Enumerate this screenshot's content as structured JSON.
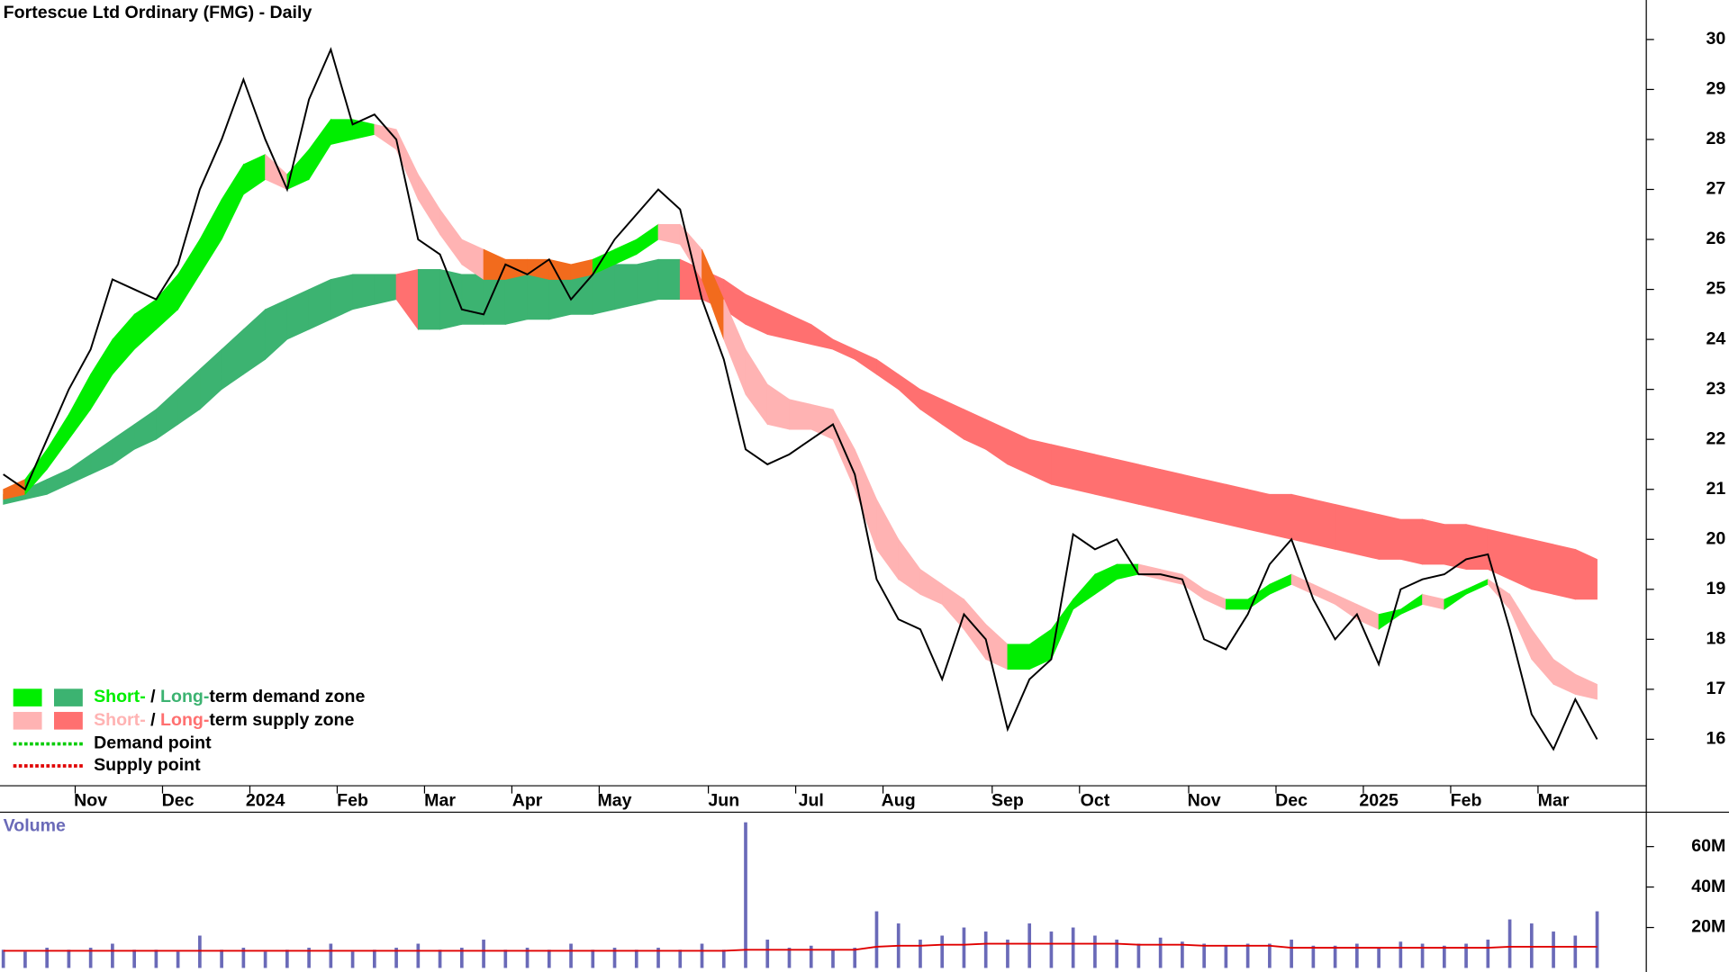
{
  "chart_data": {
    "type": "line",
    "title": "Fortescue Ltd Ordinary (FMG) - Daily",
    "categories": [
      null,
      null,
      null,
      null,
      "Nov",
      null,
      null,
      null,
      "Dec",
      null,
      null,
      null,
      "2024",
      null,
      null,
      null,
      "Feb",
      null,
      null,
      null,
      "Mar",
      null,
      null,
      null,
      "Apr",
      null,
      null,
      null,
      "May",
      null,
      null,
      null,
      null,
      "Jun",
      null,
      null,
      null,
      "Jul",
      null,
      null,
      null,
      "Aug",
      null,
      null,
      null,
      null,
      "Sep",
      null,
      null,
      null,
      "Oct",
      null,
      null,
      null,
      null,
      "Nov",
      null,
      null,
      null,
      "Dec",
      null,
      null,
      null,
      "2025",
      null,
      null,
      null,
      "Feb",
      null,
      null,
      null,
      "Mar",
      null,
      null
    ],
    "values": [
      21.3,
      21.0,
      22.0,
      23.0,
      23.8,
      25.2,
      25.0,
      24.8,
      25.5,
      27.0,
      28.0,
      29.2,
      28.0,
      27.0,
      28.8,
      29.8,
      28.3,
      28.5,
      28.0,
      26.0,
      25.7,
      24.6,
      24.5,
      25.5,
      25.3,
      25.6,
      24.8,
      25.3,
      26.0,
      26.5,
      27.0,
      26.6,
      24.8,
      23.6,
      21.8,
      21.5,
      21.7,
      22.0,
      22.3,
      21.3,
      19.2,
      18.4,
      18.2,
      17.2,
      18.5,
      18.0,
      16.2,
      17.2,
      17.6,
      20.1,
      19.8,
      20.0,
      19.3,
      19.3,
      19.2,
      18.0,
      17.8,
      18.5,
      19.5,
      20.0,
      18.8,
      18.0,
      18.5,
      17.5,
      19.0,
      19.2,
      19.3,
      19.6,
      19.7,
      18.2,
      16.5,
      15.8,
      16.8,
      16.0
    ],
    "color": "#000000",
    "short_band": {
      "upper": [
        21.0,
        21.2,
        21.8,
        22.5,
        23.3,
        24.0,
        24.5,
        24.8,
        25.3,
        26.0,
        26.8,
        27.5,
        27.7,
        27.3,
        27.8,
        28.4,
        28.4,
        28.3,
        28.2,
        27.3,
        26.6,
        26.0,
        25.8,
        25.6,
        25.6,
        25.6,
        25.5,
        25.6,
        25.8,
        26.0,
        26.3,
        26.3,
        25.8,
        24.8,
        23.8,
        23.1,
        22.8,
        22.7,
        22.6,
        21.8,
        20.8,
        20.0,
        19.4,
        19.1,
        18.8,
        18.3,
        17.9,
        17.9,
        18.2,
        18.8,
        19.3,
        19.5,
        19.5,
        19.4,
        19.3,
        19.0,
        18.8,
        18.8,
        19.1,
        19.3,
        19.1,
        18.9,
        18.7,
        18.5,
        18.6,
        18.9,
        18.8,
        19.0,
        19.2,
        18.9,
        18.2,
        17.6,
        17.3,
        17.1
      ],
      "lower": [
        20.8,
        20.9,
        21.4,
        22.0,
        22.6,
        23.3,
        23.8,
        24.2,
        24.6,
        25.3,
        26.0,
        26.9,
        27.2,
        27.0,
        27.2,
        27.9,
        28.0,
        28.1,
        27.8,
        26.8,
        26.1,
        25.5,
        25.2,
        25.2,
        25.3,
        25.2,
        25.2,
        25.3,
        25.5,
        25.7,
        26.0,
        25.9,
        25.2,
        24.0,
        22.9,
        22.3,
        22.2,
        22.2,
        22.0,
        21.0,
        19.8,
        19.2,
        18.9,
        18.7,
        18.2,
        17.6,
        17.4,
        17.4,
        17.6,
        18.6,
        18.9,
        19.2,
        19.3,
        19.2,
        19.1,
        18.8,
        18.6,
        18.6,
        18.9,
        19.1,
        18.9,
        18.7,
        18.4,
        18.2,
        18.5,
        18.7,
        18.6,
        18.9,
        19.1,
        18.6,
        17.6,
        17.1,
        16.9,
        16.8
      ]
    },
    "long_band": {
      "upper": [
        20.9,
        21.0,
        21.2,
        21.4,
        21.7,
        22.0,
        22.3,
        22.6,
        23.0,
        23.4,
        23.8,
        24.2,
        24.6,
        24.8,
        25.0,
        25.2,
        25.3,
        25.3,
        25.3,
        25.4,
        25.4,
        25.3,
        25.3,
        25.3,
        25.4,
        25.4,
        25.4,
        25.4,
        25.5,
        25.5,
        25.6,
        25.6,
        25.4,
        25.2,
        24.9,
        24.7,
        24.5,
        24.3,
        24.0,
        23.8,
        23.6,
        23.3,
        23.0,
        22.8,
        22.6,
        22.4,
        22.2,
        22.0,
        21.9,
        21.8,
        21.7,
        21.6,
        21.5,
        21.4,
        21.3,
        21.2,
        21.1,
        21.0,
        20.9,
        20.9,
        20.8,
        20.7,
        20.6,
        20.5,
        20.4,
        20.4,
        20.3,
        20.3,
        20.2,
        20.1,
        20.0,
        19.9,
        19.8,
        19.6
      ],
      "lower": [
        20.7,
        20.8,
        20.9,
        21.1,
        21.3,
        21.5,
        21.8,
        22.0,
        22.3,
        22.6,
        23.0,
        23.3,
        23.6,
        24.0,
        24.2,
        24.4,
        24.6,
        24.7,
        24.8,
        24.2,
        24.2,
        24.3,
        24.3,
        24.3,
        24.4,
        24.4,
        24.5,
        24.5,
        24.6,
        24.7,
        24.8,
        24.8,
        24.8,
        24.6,
        24.3,
        24.1,
        24.0,
        23.9,
        23.8,
        23.6,
        23.3,
        23.0,
        22.6,
        22.3,
        22.0,
        21.8,
        21.5,
        21.3,
        21.1,
        21.0,
        20.9,
        20.8,
        20.7,
        20.6,
        20.5,
        20.4,
        20.3,
        20.2,
        20.1,
        20.0,
        19.9,
        19.8,
        19.7,
        19.6,
        19.6,
        19.5,
        19.5,
        19.4,
        19.4,
        19.2,
        19.0,
        18.9,
        18.8,
        18.8
      ]
    },
    "overlap_color": "#f26b1d",
    "ylim": [
      15.07,
      30.79
    ],
    "yticks": [
      16,
      17,
      18,
      19,
      20,
      21,
      22,
      23,
      24,
      25,
      26,
      27,
      28,
      29,
      30
    ],
    "legend": [
      {
        "parts": [
          "Short-",
          " / ",
          "Long-",
          "term demand zone"
        ],
        "colors": [
          "#00ee00",
          "#3cb371"
        ]
      },
      {
        "parts": [
          "Short-",
          " / ",
          "Long-",
          "term supply zone"
        ],
        "colors": [
          "#ffb3b3",
          "#ff7070"
        ]
      },
      {
        "label": "Demand point",
        "color": "#00cc00"
      },
      {
        "label": "Supply point",
        "color": "#e00000"
      }
    ],
    "volume": {
      "label": "Volume",
      "color": "#6a6ab8",
      "average_color": "#e00000",
      "values": [
        9000000,
        8000000,
        10000000,
        9000000,
        10000000,
        12000000,
        9000000,
        9000000,
        8000000,
        16000000,
        9000000,
        10000000,
        8000000,
        9000000,
        10000000,
        12000000,
        8000000,
        9000000,
        10000000,
        12000000,
        9000000,
        10000000,
        14000000,
        9000000,
        10000000,
        9000000,
        12000000,
        9000000,
        10000000,
        9000000,
        10000000,
        9000000,
        12000000,
        9000000,
        72000000,
        14000000,
        10000000,
        11000000,
        9000000,
        10000000,
        28000000,
        22000000,
        14000000,
        16000000,
        20000000,
        18000000,
        14000000,
        22000000,
        18000000,
        20000000,
        16000000,
        14000000,
        12000000,
        15000000,
        13000000,
        12000000,
        11000000,
        12000000,
        12000000,
        14000000,
        11000000,
        11000000,
        12000000,
        10000000,
        13000000,
        12000000,
        11000000,
        12000000,
        14000000,
        24000000,
        22000000,
        18000000,
        16000000,
        28000000
      ],
      "average": [
        8500000,
        8500000,
        8500000,
        8500000,
        8500000,
        8500000,
        8500000,
        8500000,
        8500000,
        8500000,
        8500000,
        8500000,
        8500000,
        8500000,
        8500000,
        8500000,
        8500000,
        8500000,
        8500000,
        8500000,
        8500000,
        8500000,
        8500000,
        8500000,
        8500000,
        8500000,
        8500000,
        8500000,
        8500000,
        8500000,
        8500000,
        8500000,
        8500000,
        8500000,
        9000000,
        9000000,
        9000000,
        9000000,
        9000000,
        9000000,
        10500000,
        11000000,
        11000000,
        11500000,
        11500000,
        12000000,
        12000000,
        12000000,
        12000000,
        12000000,
        12000000,
        12000000,
        11500000,
        11500000,
        11500000,
        11000000,
        11000000,
        11000000,
        11000000,
        10000000,
        10000000,
        10000000,
        10000000,
        10000000,
        10000000,
        10000000,
        10000000,
        10000000,
        10000000,
        10500000,
        10500000,
        10500000,
        10500000,
        10500000
      ],
      "ylim": [
        -2000000,
        77000000
      ],
      "yticks": [
        {
          "value": 20000000,
          "label": "20M"
        },
        {
          "value": 40000000,
          "label": "40M"
        },
        {
          "value": 60000000,
          "label": "60M"
        }
      ]
    }
  }
}
